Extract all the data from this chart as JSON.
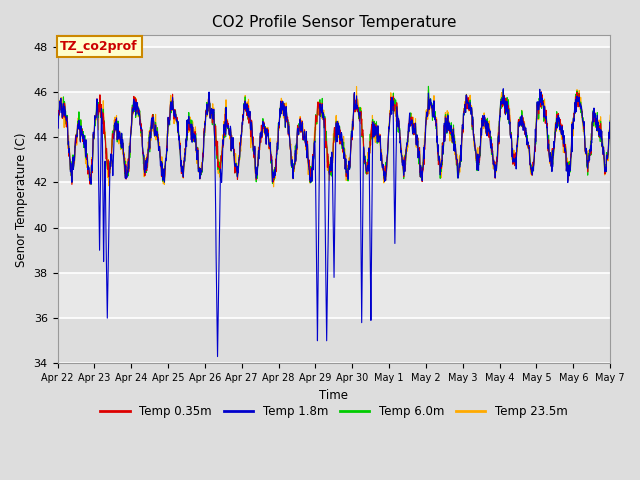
{
  "title": "CO2 Profile Sensor Temperature",
  "ylabel": "Senor Temperature (C)",
  "xlabel": "Time",
  "ylim": [
    34,
    48.5
  ],
  "yticks": [
    34,
    36,
    38,
    40,
    42,
    44,
    46,
    48
  ],
  "annotation_text": "TZ_co2prof",
  "annotation_color": "#cc0000",
  "annotation_bg": "#ffffcc",
  "annotation_border": "#cc8800",
  "legend_labels": [
    "Temp 0.35m",
    "Temp 1.8m",
    "Temp 6.0m",
    "Temp 23.5m"
  ],
  "line_colors": [
    "#dd0000",
    "#0000cc",
    "#00cc00",
    "#ffaa00"
  ],
  "bg_color": "#dddddd",
  "plot_bg": "#ebebeb",
  "grid_color": "#ffffff",
  "n_points": 1500,
  "seed": 42,
  "tick_labels": [
    "Apr 22",
    "Apr 23",
    "Apr 24",
    "Apr 25",
    "Apr 26",
    "Apr 27",
    "Apr 28",
    "Apr 29",
    "Apr 30",
    "May 1",
    "May 2",
    "May 3",
    "May 4",
    "May 5",
    "May 6",
    "May 7"
  ]
}
